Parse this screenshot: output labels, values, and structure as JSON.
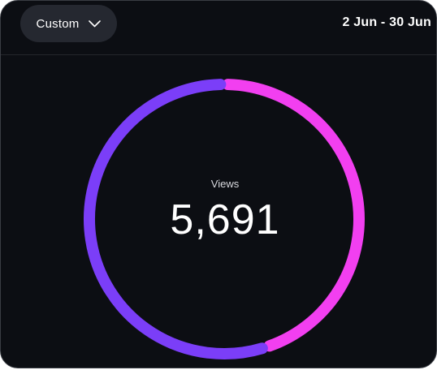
{
  "header": {
    "range_button_label": "Custom",
    "date_range": "2 Jun - 30 Jun"
  },
  "metric": {
    "label": "Views",
    "value": "5,691"
  },
  "ring": {
    "segments": [
      {
        "share": 0.45,
        "color": "#f23ff0"
      },
      {
        "share": 0.55,
        "color": "#7b3ef8"
      }
    ]
  },
  "colors": {
    "background": "#0c0e13",
    "button": "#252830"
  },
  "icons": {
    "range_button": "chevron-down-icon"
  }
}
